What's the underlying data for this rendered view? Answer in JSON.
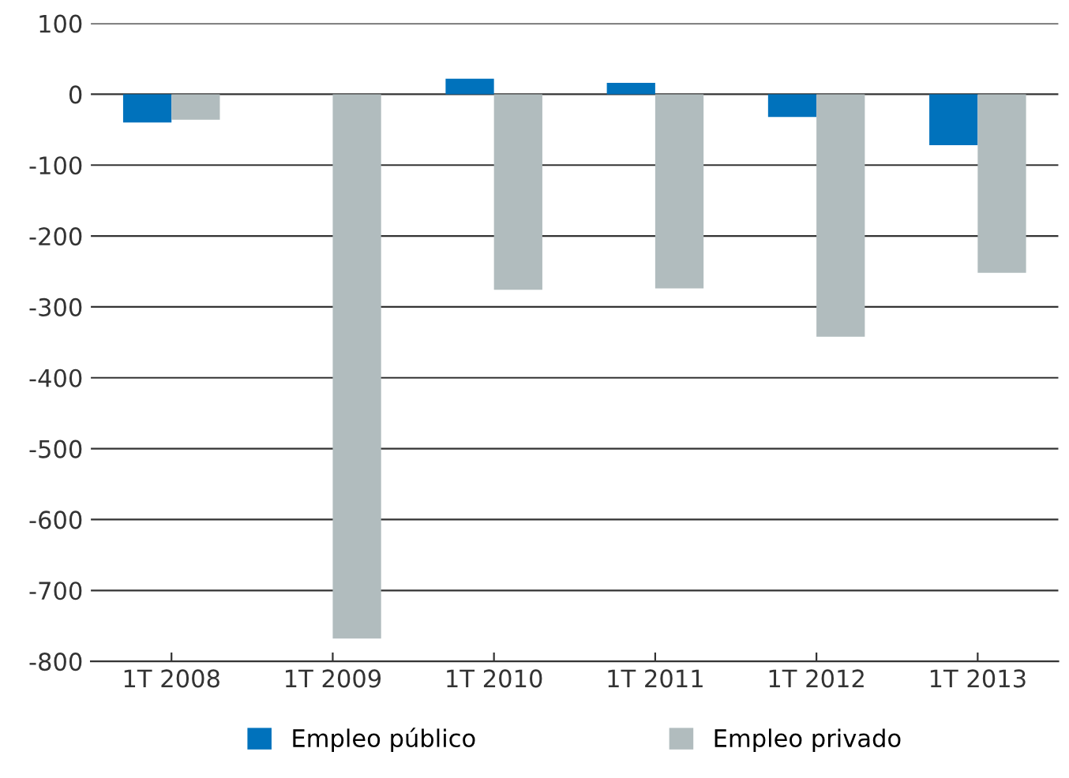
{
  "chart_data": {
    "type": "bar",
    "categories": [
      "1T 2008",
      "1T 2009",
      "1T 2010",
      "1T 2011",
      "1T 2012",
      "1T 2013"
    ],
    "series": [
      {
        "name": "Empleo público",
        "color": "#0072bc",
        "values": [
          -40,
          0,
          22,
          16,
          -32,
          -72
        ]
      },
      {
        "name": "Empleo privado",
        "color": "#b1bcbe",
        "values": [
          -36,
          -768,
          -276,
          -274,
          -342,
          -252
        ]
      }
    ],
    "ylim": [
      -800,
      100
    ],
    "yticks": [
      -800,
      -700,
      -600,
      -500,
      -400,
      -300,
      -200,
      -100,
      0,
      100
    ],
    "grid": "y",
    "legend": "bottom"
  }
}
